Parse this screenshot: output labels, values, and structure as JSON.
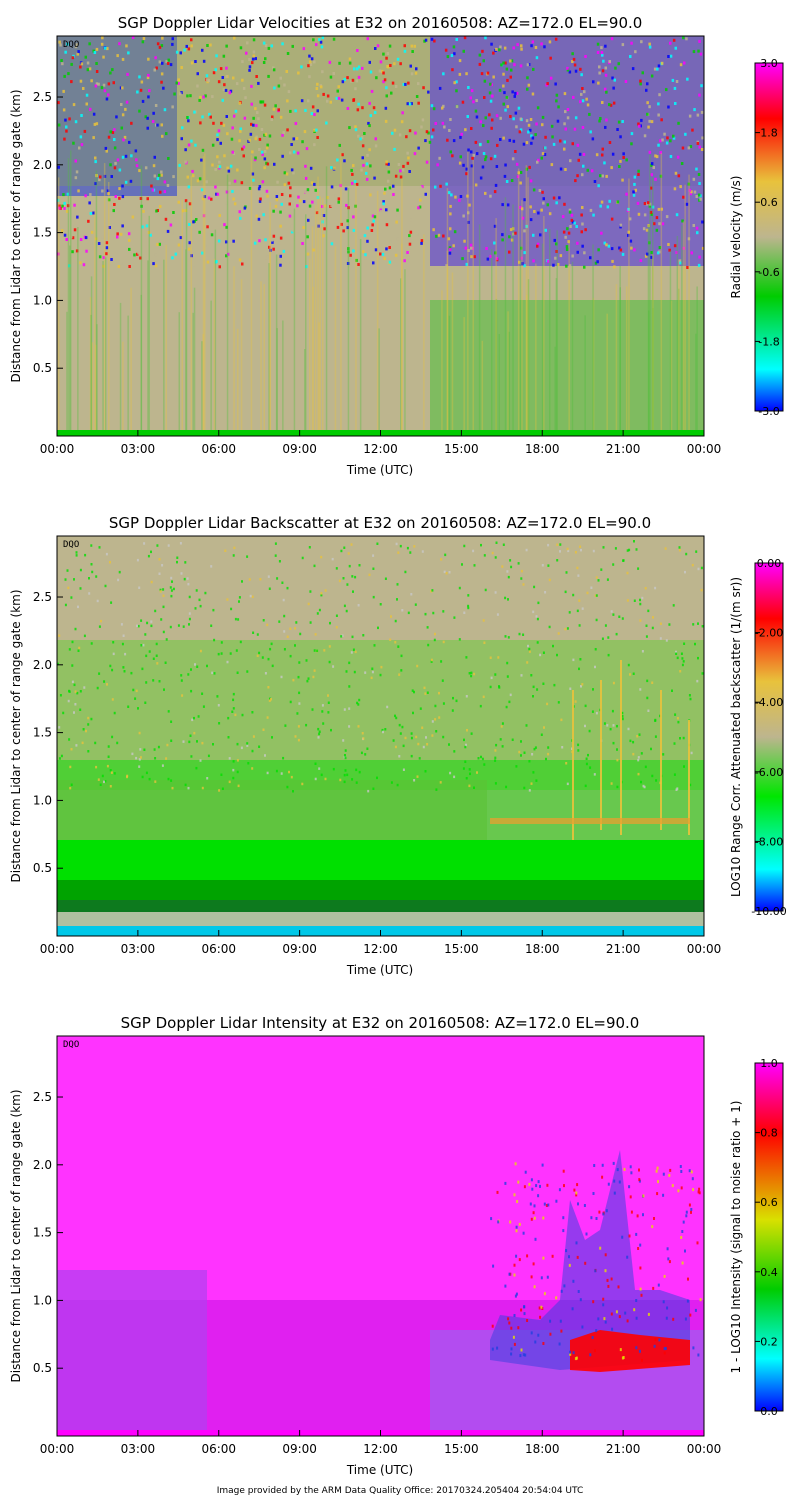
{
  "colors": {
    "velocity_scale": [
      "#0000ff",
      "#00ffff",
      "#00cc00",
      "#bdb58e",
      "#e8c23c",
      "#ff0000",
      "#ff00ff"
    ],
    "backscatter_scale": [
      "#0000ff",
      "#00ffff",
      "#00e600",
      "#bdb58e",
      "#e8c23c",
      "#ff0000",
      "#ff00ff"
    ],
    "intensity_scale": [
      "#0000ff",
      "#00ffff",
      "#00cc00",
      "#d9e000",
      "#ff0000",
      "#ff00ff"
    ]
  },
  "footer": "Image provided by the ARM Data Quality Office: 20170324.205404 20:54:04 UTC",
  "chart_data": [
    {
      "type": "heatmap",
      "title": "SGP Doppler Lidar Velocities at E32 on 20160508: AZ=172.0 EL=90.0",
      "xlabel": "Time (UTC)",
      "ylabel": "Distance from Lidar to center of range gate (km)",
      "xlim": [
        "00:00",
        "24:00"
      ],
      "ylim": [
        0.0,
        2.95
      ],
      "x_ticks": [
        "00:00",
        "03:00",
        "06:00",
        "09:00",
        "12:00",
        "15:00",
        "18:00",
        "21:00",
        "00:00"
      ],
      "y_ticks": [
        "0.5",
        "1.0",
        "1.5",
        "2.0",
        "2.5"
      ],
      "tag": "DQO",
      "colorbar": {
        "label": "Radial velocity (m/s)",
        "range": [
          -3.0,
          3.0
        ],
        "ticks": [
          "-3.0",
          "-1.8",
          "-0.6",
          "0.6",
          "1.8",
          "3.0"
        ]
      }
    },
    {
      "type": "heatmap",
      "title": "SGP Doppler Lidar Backscatter at E32 on 20160508: AZ=172.0 EL=90.0",
      "xlabel": "Time (UTC)",
      "ylabel": "Distance from Lidar to center of range gate (km)",
      "xlim": [
        "00:00",
        "24:00"
      ],
      "ylim": [
        0.0,
        2.95
      ],
      "x_ticks": [
        "00:00",
        "03:00",
        "06:00",
        "09:00",
        "12:00",
        "15:00",
        "18:00",
        "21:00",
        "00:00"
      ],
      "y_ticks": [
        "0.5",
        "1.0",
        "1.5",
        "2.0",
        "2.5"
      ],
      "tag": "DQO",
      "colorbar": {
        "label": "LOG10 Range Corr. Attenuated backscatter (1/(m sr))",
        "range": [
          -10.0,
          0.0
        ],
        "ticks": [
          "-10.00",
          "-8.00",
          "-6.00",
          "-4.00",
          "-2.00",
          "0.00"
        ]
      }
    },
    {
      "type": "heatmap",
      "title": "SGP Doppler Lidar Intensity at E32 on 20160508: AZ=172.0 EL=90.0",
      "xlabel": "Time (UTC)",
      "ylabel": "Distance from Lidar to center of range gate (km)",
      "xlim": [
        "00:00",
        "24:00"
      ],
      "ylim": [
        0.0,
        2.95
      ],
      "x_ticks": [
        "00:00",
        "03:00",
        "06:00",
        "09:00",
        "12:00",
        "15:00",
        "18:00",
        "21:00",
        "00:00"
      ],
      "y_ticks": [
        "0.5",
        "1.0",
        "1.5",
        "2.0",
        "2.5"
      ],
      "tag": "DQO",
      "colorbar": {
        "label": "1 - LOG10 Intensity (signal to noise ratio + 1)",
        "range": [
          0.0,
          1.0
        ],
        "ticks": [
          "0.0",
          "0.2",
          "0.4",
          "0.6",
          "0.8",
          "1.0"
        ]
      }
    }
  ]
}
